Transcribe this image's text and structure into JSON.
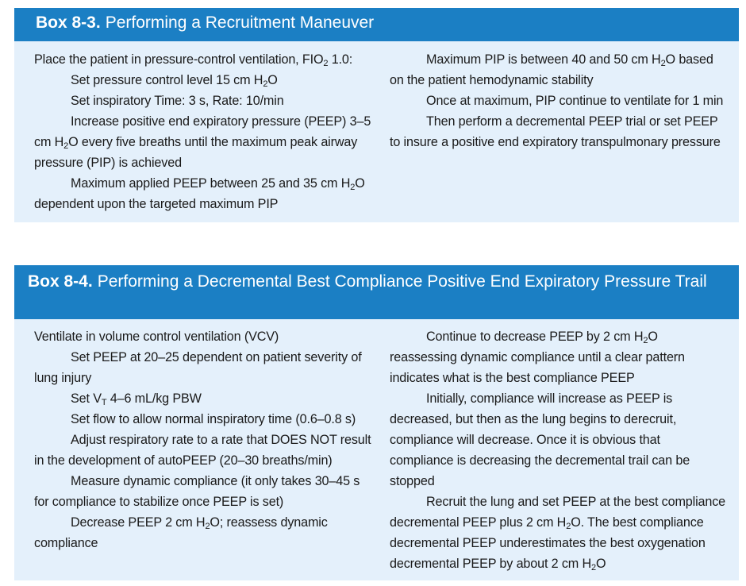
{
  "box1": {
    "number": "Box 8-3.",
    "title": "Performing a Recruitment Maneuver",
    "left": [
      {
        "indent": false,
        "parts": [
          "Place the patient in pressure-control ventilation, FIO",
          {
            "sub": "2"
          },
          " 1.0:"
        ]
      },
      {
        "indent": true,
        "parts": [
          "Set pressure control level 15 cm H",
          {
            "sub": "2"
          },
          "O"
        ]
      },
      {
        "indent": true,
        "parts": [
          "Set inspiratory Time: 3 s, Rate: 10/min"
        ]
      },
      {
        "indent": true,
        "parts": [
          "Increase positive end expiratory pressure (PEEP) 3–5 cm H",
          {
            "sub": "2"
          },
          "O every five breaths until the maximum peak airway pressure (PIP) is achieved"
        ]
      },
      {
        "indent": true,
        "parts": [
          "Maximum applied PEEP between 25 and 35 cm H",
          {
            "sub": "2"
          },
          "O dependent upon the targeted maximum PIP"
        ]
      }
    ],
    "right": [
      {
        "indent": true,
        "parts": [
          "Maximum PIP is between 40 and 50 cm H",
          {
            "sub": "2"
          },
          "O based on the patient hemodynamic stability"
        ]
      },
      {
        "indent": true,
        "parts": [
          "Once at maximum, PIP continue to ventilate for 1 min"
        ]
      },
      {
        "indent": true,
        "parts": [
          "Then perform a decremental PEEP trial or set PEEP to insure a positive end expiratory transpulmonary pressure"
        ]
      }
    ]
  },
  "box2": {
    "number": "Box 8-4.",
    "title": "Performing a Decremental Best Compliance Positive End Expiratory Pressure Trail",
    "left": [
      {
        "indent": false,
        "parts": [
          "Ventilate in volume control ventilation (VCV)"
        ]
      },
      {
        "indent": true,
        "parts": [
          "Set PEEP at 20–25 dependent on patient severity of lung injury"
        ]
      },
      {
        "indent": true,
        "parts": [
          "Set V",
          {
            "sub": "T"
          },
          " 4–6 mL/kg PBW"
        ]
      },
      {
        "indent": true,
        "parts": [
          "Set flow to allow normal inspiratory time (0.6–0.8 s)"
        ]
      },
      {
        "indent": true,
        "parts": [
          "Adjust respiratory rate to a rate that DOES NOT result in the development of autoPEEP (20–30 breaths/min)"
        ]
      },
      {
        "indent": true,
        "parts": [
          "Measure dynamic compliance (it only takes 30–45 s for compliance to stabilize once PEEP is set)"
        ]
      },
      {
        "indent": true,
        "parts": [
          "Decrease PEEP 2 cm H",
          {
            "sub": "2"
          },
          "O; reassess dynamic compliance"
        ]
      }
    ],
    "right": [
      {
        "indent": true,
        "parts": [
          "Continue to decrease PEEP by 2 cm H",
          {
            "sub": "2"
          },
          "O reassessing dynamic compliance until a clear pattern indicates what is the best compliance PEEP"
        ]
      },
      {
        "indent": true,
        "parts": [
          "Initially, compliance will increase as PEEP is decreased, but then as the lung begins to derecruit, compliance will decrease. Once it is obvious that compliance is decreasing the decremental trail can be stopped"
        ]
      },
      {
        "indent": true,
        "parts": [
          "Recruit the lung and set PEEP at the best compliance decremental PEEP plus 2 cm H",
          {
            "sub": "2"
          },
          "O. The best compliance decremental PEEP underestimates the best oxygenation decremental PEEP by about 2 cm H",
          {
            "sub": "2"
          },
          "O"
        ]
      }
    ]
  }
}
